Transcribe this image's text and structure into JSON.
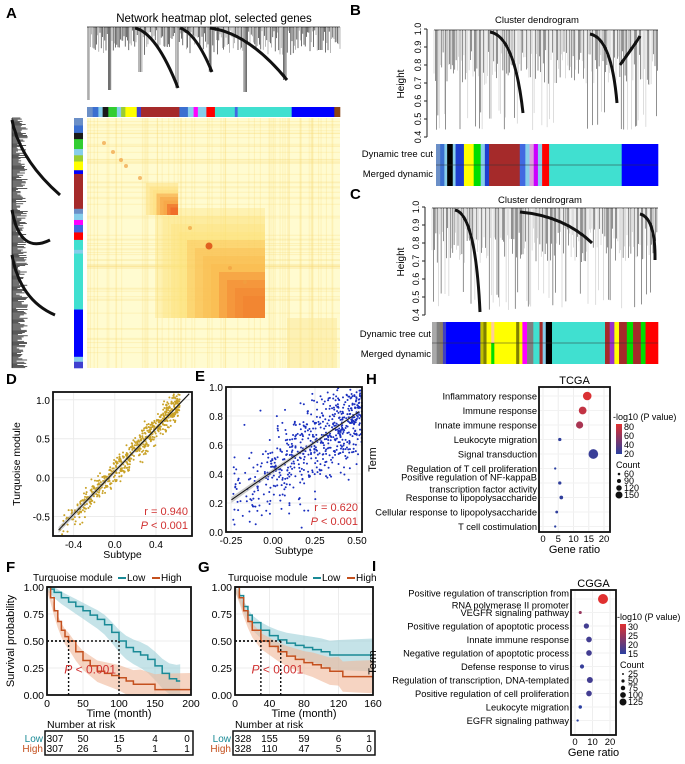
{
  "panels": {
    "A": {
      "label": "A",
      "title": "Network heatmap plot, selected genes"
    },
    "B": {
      "label": "B",
      "title": "Cluster dendrogram",
      "ylabel": "Height",
      "yticks": [
        "0.4",
        "0.5",
        "0.6",
        "0.7",
        "0.8",
        "0.9",
        "1.0"
      ],
      "row_labels": [
        "Dynamic tree cut",
        "Merged dynamic"
      ]
    },
    "C": {
      "label": "C",
      "title": "Cluster dendrogram",
      "ylabel": "Height",
      "yticks": [
        "0.4",
        "0.5",
        "0.6",
        "0.7",
        "0.8",
        "0.9",
        "1.0"
      ],
      "row_labels": [
        "Dynamic tree cut",
        "Merged dynamic"
      ]
    },
    "D": {
      "label": "D"
    },
    "E": {
      "label": "E"
    },
    "F": {
      "label": "F"
    },
    "G": {
      "label": "G"
    },
    "H": {
      "label": "H"
    },
    "I": {
      "label": "I"
    }
  },
  "module_colors": {
    "A_top": [
      "#6b8fc7",
      "#3b6fd0",
      "#87ceeb",
      "#1a1a1a",
      "#32cd32",
      "#87ceeb",
      "#9acd32",
      "#ffff00",
      "#4040d0",
      "#a52a2a",
      "#3b6fd0",
      "#87ceeb",
      "#ff00ff",
      "#87ceeb",
      "#ff0000",
      "#40e0d0",
      "#4169e1",
      "#40e0d0",
      "#0000ff",
      "#8b4513"
    ],
    "A_top_w": [
      4,
      4,
      3,
      4,
      6,
      3,
      3,
      8,
      3,
      27,
      6,
      4,
      3,
      6,
      6,
      14,
      2,
      38,
      30,
      4
    ],
    "A_left": [
      "#6b8fc7",
      "#3b6fd0",
      "#1a1a1a",
      "#32cd32",
      "#87ceeb",
      "#9acd32",
      "#ffff00",
      "#0000ff",
      "#a52a2a",
      "#6b8fc7",
      "#87ceeb",
      "#ff00ff",
      "#4169e1",
      "#ff0000",
      "#40e0d0",
      "#87ceeb",
      "#40e0d0",
      "#0000ff",
      "#87ceeb",
      "#4040d0"
    ],
    "A_left_w": [
      6,
      6,
      5,
      8,
      5,
      5,
      7,
      3,
      28,
      4,
      5,
      4,
      6,
      6,
      8,
      3,
      45,
      38,
      4,
      5
    ],
    "B": [
      "#6b8fc7",
      "#3b6fd0",
      "#87ceeb",
      "#000000",
      "#87ceeb",
      "#1e3fd0",
      "#ffff00",
      "#00dd00",
      "#87ceeb",
      "#1e3fd0",
      "#a52a2a",
      "#4169e1",
      "#87ceeb",
      "#dda0dd",
      "#cc00ff",
      "#87ceeb",
      "#ff0000",
      "#40e0d0",
      "#0000ff"
    ],
    "B_w": [
      3,
      3,
      2,
      4,
      2,
      6,
      7,
      5,
      3,
      3,
      22,
      4,
      3,
      3,
      3,
      3,
      5,
      52,
      26
    ],
    "C_top": [
      "#a9a9a9",
      "#808080",
      "#8b7d6b",
      "#4040c0",
      "#0000ff",
      "#c0c000",
      "#808000",
      "#ffff00",
      "#ffcc99",
      "#ffff00",
      "#808000",
      "#ffff00",
      "#ff00ff",
      "#808080",
      "#40e0d0",
      "#a52a2a",
      "#87ceeb",
      "#000000",
      "#40e0d0",
      "#a52a2a",
      "#9932cc",
      "#ffff00",
      "#a52a2a",
      "#00dd00",
      "#a52a2a",
      "#00dd00",
      "#ff0000"
    ],
    "C_bottom": [
      "#a9a9a9",
      "#808080",
      "#8b7d6b",
      "#4040c0",
      "#0000ff",
      "#c0c000",
      "#808000",
      "#ffff00",
      "#00dd00",
      "#ffff00",
      "#808000",
      "#ffff00",
      "#ff00ff",
      "#808080",
      "#40e0d0",
      "#a52a2a",
      "#87ceeb",
      "#000000",
      "#40e0d0",
      "#a52a2a",
      "#9932cc",
      "#ffff00",
      "#a52a2a",
      "#00dd00",
      "#a52a2a",
      "#00dd00",
      "#ff0000"
    ],
    "C_w": [
      3,
      2,
      2,
      2,
      22,
      2,
      2,
      3,
      2,
      14,
      2,
      2,
      3,
      4,
      4,
      2,
      2,
      4,
      34,
      3,
      3,
      3,
      5,
      4,
      5,
      3,
      8
    ]
  },
  "chart_data": [
    {
      "panel": "D",
      "type": "scatter",
      "title": "",
      "xlabel": "Subtype",
      "ylabel": "Turquoise module",
      "xlim": [
        -0.6,
        0.75
      ],
      "ylim": [
        -0.75,
        1.1
      ],
      "xticks": [
        -0.4,
        0.0,
        0.4
      ],
      "xtick_labels": [
        "-0.4",
        "0.0",
        "0.4"
      ],
      "yticks": [
        -0.5,
        0.0,
        0.5,
        1.0
      ],
      "ytick_labels": [
        "-0.5",
        "0.0",
        "0.5",
        "1.0"
      ],
      "point_color": "#c9a227",
      "n_points": 650,
      "fit": {
        "slope": 1.38,
        "intercept": 0.08
      },
      "annotations": [
        "r = 0.940",
        "P < 0.001"
      ],
      "annotation_color": "#d03030",
      "grid": true
    },
    {
      "panel": "E",
      "type": "scatter",
      "title": "",
      "xlabel": "Subtype",
      "ylabel": "",
      "xlim": [
        -0.28,
        0.53
      ],
      "ylim": [
        0.0,
        1.0
      ],
      "xticks": [
        -0.25,
        0.0,
        0.25,
        0.5
      ],
      "xtick_labels": [
        "-0.25",
        "0.00",
        "0.25",
        "0.50"
      ],
      "yticks": [
        0.0,
        0.2,
        0.4,
        0.6,
        0.8,
        1.0
      ],
      "ytick_labels": [
        "0.0",
        "0.2",
        "0.4",
        "0.6",
        "0.8",
        "1.0"
      ],
      "point_color": "#1a2fbf",
      "n_points": 650,
      "fit": {
        "slope": 0.8,
        "intercept": 0.42
      },
      "annotations": [
        "r = 0.620",
        "P < 0.001"
      ],
      "annotation_color": "#d03030",
      "grid": true
    },
    {
      "panel": "F",
      "type": "line",
      "title": "",
      "legend_title": "Turquoise module",
      "legend": [
        "Low",
        "High"
      ],
      "legend_placement": "top",
      "xlabel": "Time (month)",
      "ylabel": "Survival probability",
      "xlim": [
        0,
        200
      ],
      "ylim": [
        0,
        1
      ],
      "xticks": [
        0,
        50,
        100,
        150,
        200
      ],
      "yticks": [
        0,
        0.25,
        0.5,
        0.75,
        1.0
      ],
      "ytick_labels": [
        "0.00",
        "0.25",
        "0.50",
        "0.75",
        "1.00"
      ],
      "series": [
        {
          "name": "Low",
          "color": "#1a8a96",
          "band": "#9fd0d8",
          "x": [
            0,
            5,
            10,
            20,
            30,
            40,
            50,
            60,
            70,
            80,
            90,
            100,
            110,
            120,
            130,
            140,
            150,
            160,
            170,
            180,
            185
          ],
          "y": [
            1.0,
            0.98,
            0.95,
            0.9,
            0.86,
            0.82,
            0.78,
            0.74,
            0.7,
            0.65,
            0.58,
            0.5,
            0.44,
            0.4,
            0.37,
            0.33,
            0.27,
            0.2,
            0.15,
            0.13,
            0.13
          ]
        },
        {
          "name": "High",
          "color": "#c4501e",
          "band": "#f0b89a",
          "x": [
            0,
            5,
            10,
            15,
            20,
            25,
            30,
            40,
            50,
            60,
            70,
            80,
            90,
            100,
            110,
            120,
            130,
            150,
            160,
            200
          ],
          "y": [
            1.0,
            0.9,
            0.78,
            0.68,
            0.6,
            0.54,
            0.5,
            0.4,
            0.32,
            0.27,
            0.22,
            0.2,
            0.18,
            0.16,
            0.13,
            0.1,
            0.1,
            0.05,
            0.05,
            0.05
          ]
        }
      ],
      "median_lines": [
        {
          "x": 30,
          "y": 0.5
        },
        {
          "x": 100,
          "y": 0.5
        }
      ],
      "annotation": "P < 0.001",
      "risk_table": {
        "title": "Number at risk",
        "rows": [
          {
            "name": "Low",
            "values": [
              307,
              50,
              15,
              4,
              0
            ]
          },
          {
            "name": "High",
            "values": [
              307,
              26,
              5,
              1,
              1
            ]
          }
        ]
      }
    },
    {
      "panel": "G",
      "type": "line",
      "title": "",
      "legend_title": "Turquoise module",
      "legend": [
        "Low",
        "High"
      ],
      "legend_placement": "top",
      "xlabel": "Time (month)",
      "ylabel": "",
      "xlim": [
        0,
        160
      ],
      "ylim": [
        0,
        1
      ],
      "xticks": [
        0,
        40,
        80,
        120,
        160
      ],
      "yticks": [
        0,
        0.25,
        0.5,
        0.75,
        1.0
      ],
      "ytick_labels": [
        "0.00",
        "0.25",
        "0.50",
        "0.75",
        "1.00"
      ],
      "series": [
        {
          "name": "Low",
          "color": "#1a8a96",
          "band": "#9fd0d8",
          "x": [
            0,
            5,
            10,
            15,
            20,
            30,
            40,
            50,
            60,
            70,
            80,
            90,
            100,
            110,
            120,
            140,
            160
          ],
          "y": [
            1.0,
            0.92,
            0.82,
            0.74,
            0.67,
            0.6,
            0.55,
            0.51,
            0.48,
            0.46,
            0.44,
            0.42,
            0.4,
            0.37,
            0.37,
            0.37,
            0.37
          ]
        },
        {
          "name": "High",
          "color": "#c4501e",
          "band": "#f0b89a",
          "x": [
            0,
            5,
            10,
            15,
            20,
            30,
            40,
            50,
            60,
            70,
            80,
            90,
            100,
            110,
            120,
            125,
            140,
            160
          ],
          "y": [
            1.0,
            0.9,
            0.78,
            0.68,
            0.6,
            0.5,
            0.45,
            0.4,
            0.36,
            0.33,
            0.3,
            0.28,
            0.25,
            0.22,
            0.22,
            0.17,
            0.17,
            0.17
          ]
        }
      ],
      "median_lines": [
        {
          "x": 30,
          "y": 0.5
        },
        {
          "x": 53,
          "y": 0.5
        }
      ],
      "annotation": "P < 0.001",
      "risk_table": {
        "title": "Number at risk",
        "rows": [
          {
            "name": "Low",
            "values": [
              328,
              155,
              59,
              6,
              1
            ]
          },
          {
            "name": "High",
            "values": [
              328,
              110,
              47,
              5,
              0
            ]
          }
        ]
      }
    },
    {
      "panel": "H",
      "type": "scatter",
      "title": "TCGA",
      "xlabel": "Gene ratio",
      "ylabel": "Term",
      "xlim": [
        0,
        20
      ],
      "xticks": [
        0,
        5,
        10,
        15,
        20
      ],
      "terms": [
        "Inflammatory response",
        "Immune response",
        "Innate immune response",
        "Leukocyte migration",
        "Signal transduction",
        "Regulation of T cell proliferation",
        "Positive regulation of NF-kappaB transcription factor activity",
        "Response to lipopolysaccharide",
        "Cellular response to lipopolysaccharide",
        "T cell costimulation"
      ],
      "term_lines": [
        [
          "Inflammatory response"
        ],
        [
          "Immune response"
        ],
        [
          "Innate immune response"
        ],
        [
          "Leukocyte migration"
        ],
        [
          "Signal transduction"
        ],
        [
          "Regulation of T cell proliferation"
        ],
        [
          "Positive regulation of NF-kappaB",
          "transcription factor activity"
        ],
        [
          "Response to lipopolysaccharide"
        ],
        [
          "Cellular response to lipopolysaccharide"
        ],
        [
          "T cell costimulation"
        ]
      ],
      "gene_ratio": [
        14.5,
        13,
        12,
        5.5,
        16.5,
        4,
        5.5,
        6,
        4.5,
        4
      ],
      "neg_log10_p": [
        78,
        70,
        62,
        22,
        25,
        20,
        22,
        22,
        22,
        18
      ],
      "count": [
        130,
        118,
        110,
        55,
        145,
        40,
        55,
        60,
        48,
        40
      ],
      "color_legend": {
        "title": "-log10 (P value)",
        "ticks": [
          80,
          60,
          40,
          20
        ],
        "low": "#2a3fa0",
        "high": "#e03030"
      },
      "size_legend": {
        "title": "Count",
        "values": [
          60,
          90,
          120,
          150
        ]
      }
    },
    {
      "panel": "I",
      "type": "scatter",
      "title": "CGGA",
      "xlabel": "Gene ratio",
      "ylabel": "Term",
      "xlim": [
        0,
        20
      ],
      "xticks": [
        0,
        10,
        20
      ],
      "terms": [
        "Positive regulation of transcription from RNA polymerase II promoter",
        "VEGFR signaling pathway",
        "Positive regulation of apoptotic process",
        "Innate immune response",
        "Negative regulation of apoptotic process",
        "Defense response to virus",
        "Regulation of transcription, DNA-templated",
        "Positive regulation of cell proliferation",
        "Leukocyte migration",
        "EGFR signaling pathway"
      ],
      "term_lines": [
        [
          "Positive regulation of transcription from",
          "RNA polymerase II promoter"
        ],
        [
          "VEGFR signaling pathway"
        ],
        [
          "Positive regulation of apoptotic process"
        ],
        [
          "Innate immune response"
        ],
        [
          "Negative regulation of apoptotic process"
        ],
        [
          "Defense response to virus"
        ],
        [
          "Regulation of transcription, DNA-templated"
        ],
        [
          "Positive regulation of cell proliferation"
        ],
        [
          "Leukocyte migration"
        ],
        [
          "EGFR signaling pathway"
        ]
      ],
      "gene_ratio": [
        16,
        3,
        6.5,
        8,
        8,
        4,
        8.5,
        8,
        3,
        1.5
      ],
      "neg_log10_p": [
        30,
        24,
        17,
        17,
        17,
        16,
        17,
        17,
        15,
        15
      ],
      "count": [
        125,
        30,
        60,
        65,
        65,
        45,
        70,
        65,
        35,
        20
      ],
      "color_legend": {
        "title": "-log10 (P value)",
        "ticks": [
          30,
          25,
          20,
          15
        ],
        "low": "#2a3fa0",
        "high": "#e03030"
      },
      "size_legend": {
        "title": "Count",
        "values": [
          25,
          50,
          75,
          100,
          125
        ]
      }
    }
  ]
}
